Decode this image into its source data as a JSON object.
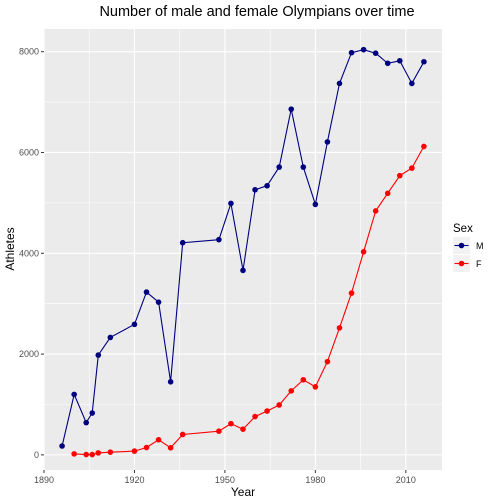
{
  "chart_data": {
    "type": "line",
    "title": "Number of male and female Olympians over time",
    "xlabel": "Year",
    "ylabel": "Athletes",
    "xlim": [
      1890,
      2022
    ],
    "ylim": [
      -300,
      8450
    ],
    "x_ticks": [
      1890,
      1920,
      1950,
      1980,
      2010
    ],
    "y_ticks": [
      0,
      2000,
      4000,
      6000,
      8000
    ],
    "grid": true,
    "legend_position": "right",
    "legend_title": "Sex",
    "series": [
      {
        "name": "M",
        "color": "#00007f",
        "x": [
          1896,
          1900,
          1904,
          1906,
          1908,
          1912,
          1920,
          1924,
          1928,
          1932,
          1936,
          1948,
          1952,
          1956,
          1960,
          1964,
          1968,
          1972,
          1976,
          1980,
          1984,
          1988,
          1992,
          1996,
          2000,
          2004,
          2008,
          2012,
          2016
        ],
        "y": [
          176,
          1200,
          640,
          830,
          1980,
          2330,
          2590,
          3230,
          3030,
          1450,
          4210,
          4270,
          4990,
          3660,
          5260,
          5340,
          5710,
          6860,
          5710,
          4970,
          6210,
          7370,
          7980,
          8040,
          7970,
          7770,
          7820,
          7370,
          7800
        ]
      },
      {
        "name": "F",
        "color": "#ff0000",
        "x": [
          1900,
          1904,
          1906,
          1908,
          1912,
          1920,
          1924,
          1928,
          1932,
          1936,
          1948,
          1952,
          1956,
          1960,
          1964,
          1968,
          1972,
          1976,
          1980,
          1984,
          1988,
          1992,
          1996,
          2000,
          2004,
          2008,
          2012,
          2016
        ],
        "y": [
          20,
          6,
          6,
          40,
          54,
          75,
          146,
          300,
          140,
          405,
          470,
          620,
          510,
          760,
          870,
          990,
          1270,
          1490,
          1350,
          1850,
          2520,
          3210,
          4030,
          4840,
          5190,
          5540,
          5690,
          6120
        ]
      }
    ]
  }
}
